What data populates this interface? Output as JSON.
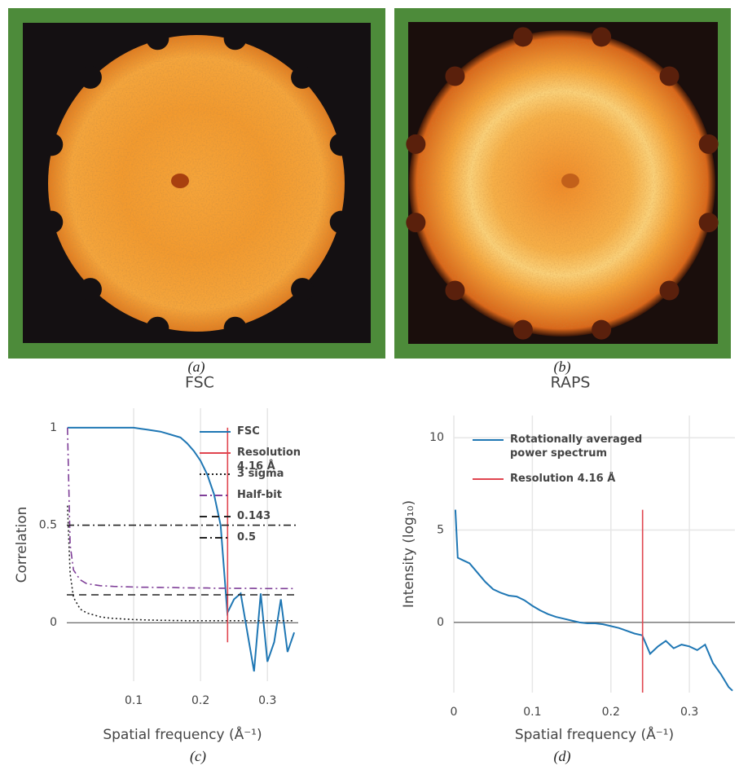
{
  "images": [
    {
      "caption": "(a)"
    },
    {
      "caption": "(b)"
    }
  ],
  "chart_data": [
    {
      "type": "line",
      "title": "FSC",
      "caption": "(c)",
      "xlabel": "Spatial frequency (Å⁻¹)",
      "ylabel": "Correlation",
      "x": [
        0.001,
        0.005,
        0.01,
        0.02,
        0.03,
        0.04,
        0.05,
        0.06,
        0.07,
        0.08,
        0.09,
        0.1,
        0.11,
        0.12,
        0.13,
        0.14,
        0.15,
        0.16,
        0.17,
        0.18,
        0.19,
        0.2,
        0.21,
        0.22,
        0.23,
        0.24,
        0.25,
        0.26,
        0.27,
        0.28,
        0.29,
        0.3,
        0.31,
        0.32,
        0.33,
        0.34
      ],
      "series": [
        {
          "name": "FSC",
          "color": "#1f77b4",
          "dash": "solid",
          "values": [
            1,
            1,
            1,
            1,
            1,
            1,
            1,
            1,
            1,
            1,
            1,
            1,
            0.995,
            0.99,
            0.985,
            0.98,
            0.97,
            0.96,
            0.95,
            0.92,
            0.88,
            0.83,
            0.76,
            0.66,
            0.5,
            0.05,
            0.12,
            0.15,
            -0.05,
            -0.25,
            0.15,
            -0.2,
            -0.1,
            0.12,
            -0.15,
            -0.05
          ]
        },
        {
          "name": "3 sigma",
          "color": "#222222",
          "dash": "dot",
          "values": [
            0.6,
            0.25,
            0.13,
            0.07,
            0.05,
            0.04,
            0.03,
            0.025,
            0.022,
            0.02,
            0.018,
            0.016,
            0.015,
            0.014,
            0.013,
            0.012,
            0.012,
            0.011,
            0.011,
            0.01,
            0.01,
            0.01,
            0.01,
            0.01,
            0.01,
            0.01,
            0.01,
            0.01,
            0.01,
            0.01,
            0.01,
            0.01,
            0.01,
            0.01,
            0.01,
            0.01
          ]
        },
        {
          "name": "Half-bit",
          "color": "#7f3f98",
          "dash": "dashdot",
          "values": [
            1,
            0.4,
            0.27,
            0.22,
            0.2,
            0.195,
            0.19,
            0.188,
            0.186,
            0.185,
            0.184,
            0.183,
            0.182,
            0.182,
            0.181,
            0.181,
            0.18,
            0.18,
            0.179,
            0.179,
            0.178,
            0.178,
            0.178,
            0.177,
            0.177,
            0.177,
            0.176,
            0.176,
            0.176,
            0.176,
            0.175,
            0.175,
            0.175,
            0.175,
            0.175,
            0.175
          ]
        }
      ],
      "vlines": [
        {
          "name": "Resolution 4.16 Å",
          "color": "#e0454f",
          "x": 0.2404
        }
      ],
      "hlines": [
        {
          "name": "0.143",
          "color": "#222222",
          "dash": "dash",
          "y": 0.143
        },
        {
          "name": "0.5",
          "color": "#222222",
          "dash": "dashdot",
          "y": 0.5
        }
      ],
      "legend": "upper right",
      "xlim": [
        0,
        0.346
      ],
      "ylim": [
        -0.3,
        1.1
      ],
      "xticks": [
        0.1,
        0.2,
        0.3
      ],
      "yticks": [
        0,
        0.5,
        1
      ],
      "grid": "x"
    },
    {
      "type": "line",
      "title": "RAPS",
      "caption": "(d)",
      "xlabel": "Spatial frequency (Å⁻¹)",
      "ylabel": "Intensity (log₁₀)",
      "x": [
        0.002,
        0.005,
        0.01,
        0.02,
        0.03,
        0.04,
        0.05,
        0.06,
        0.07,
        0.08,
        0.09,
        0.1,
        0.11,
        0.12,
        0.13,
        0.14,
        0.15,
        0.16,
        0.17,
        0.18,
        0.19,
        0.2,
        0.21,
        0.22,
        0.23,
        0.24,
        0.25,
        0.26,
        0.27,
        0.28,
        0.29,
        0.3,
        0.31,
        0.32,
        0.33,
        0.34,
        0.35,
        0.355
      ],
      "series": [
        {
          "name": "Rotationally averaged power spectrum",
          "color": "#1f77b4",
          "dash": "solid",
          "values": [
            6.1,
            3.5,
            3.4,
            3.2,
            2.7,
            2.2,
            1.8,
            1.6,
            1.45,
            1.4,
            1.2,
            0.9,
            0.65,
            0.45,
            0.3,
            0.2,
            0.1,
            0,
            -0.05,
            -0.05,
            -0.1,
            -0.2,
            -0.3,
            -0.45,
            -0.6,
            -0.7,
            -1.7,
            -1.3,
            -1,
            -1.4,
            -1.2,
            -1.3,
            -1.5,
            -1.2,
            -2.2,
            -2.8,
            -3.5,
            -3.7
          ]
        }
      ],
      "vlines": [
        {
          "name": "Resolution 4.16 Å",
          "color": "#e0454f",
          "x": 0.2404
        }
      ],
      "hlines": [],
      "legend": "upper left",
      "xlim": [
        0,
        0.358
      ],
      "ylim": [
        -3.8,
        11.2
      ],
      "xticks": [
        0,
        0.1,
        0.2,
        0.3
      ],
      "yticks": [
        0,
        5,
        10
      ],
      "grid": "both"
    }
  ]
}
